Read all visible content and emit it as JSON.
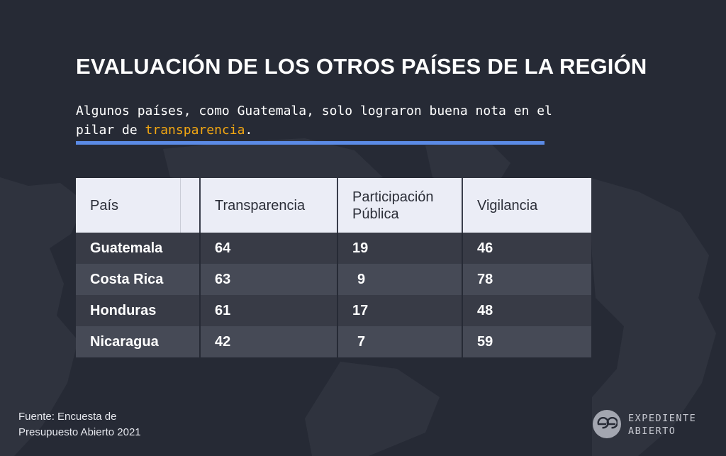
{
  "header": {
    "title": "EVALUACIÓN DE LOS OTROS PAÍSES DE LA REGIÓN",
    "subtitle_before": "Algunos países, como Guatemala, solo lograron buena nota en el pilar de ",
    "subtitle_highlight": "transparencia",
    "subtitle_after": "."
  },
  "table": {
    "headers": [
      "País",
      "Transparencia",
      "Participación Pública",
      "Vigilancia"
    ],
    "rows": [
      [
        "Guatemala",
        "64",
        "19",
        "46"
      ],
      [
        "Costa Rica",
        "63",
        "9",
        "78"
      ],
      [
        "Honduras",
        "61",
        "17",
        "48"
      ],
      [
        "Nicaragua",
        "42",
        "7",
        "59"
      ]
    ]
  },
  "footer": {
    "source_line1": "Fuente: Encuesta de",
    "source_line2": "Presupuesto Abierto 2021",
    "logo_line1": "EXPEDIENTE",
    "logo_line2": "ABIERTO"
  },
  "colors": {
    "background": "#262a35",
    "highlight": "#f3a712",
    "rule": "#5b8be6",
    "header_row": "#ebedf6"
  },
  "icons": {
    "background": "central-america-map",
    "logo": "expediente-abierto-logo"
  }
}
